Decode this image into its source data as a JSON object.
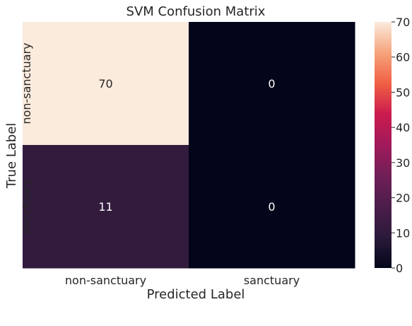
{
  "chart_data": {
    "type": "heatmap",
    "title": "SVM Confusion Matrix",
    "xlabel": "Predicted Label",
    "ylabel": "True Label",
    "x_categories": [
      "non-sanctuary",
      "sanctuary"
    ],
    "y_categories": [
      "non-sanctuary",
      "sanctuary"
    ],
    "values": [
      [
        70,
        0
      ],
      [
        11,
        0
      ]
    ],
    "annotations": [
      [
        "70",
        "0"
      ],
      [
        "11",
        "0"
      ]
    ],
    "colorbar": {
      "colormap": "rocket",
      "range": [
        0,
        70
      ],
      "ticks": [
        "0",
        "10",
        "20",
        "30",
        "40",
        "50",
        "60",
        "70"
      ]
    },
    "grid": false,
    "colors": {
      "cell_text_on_light": "#262626",
      "cell_text_on_dark": "#ffffff"
    }
  }
}
